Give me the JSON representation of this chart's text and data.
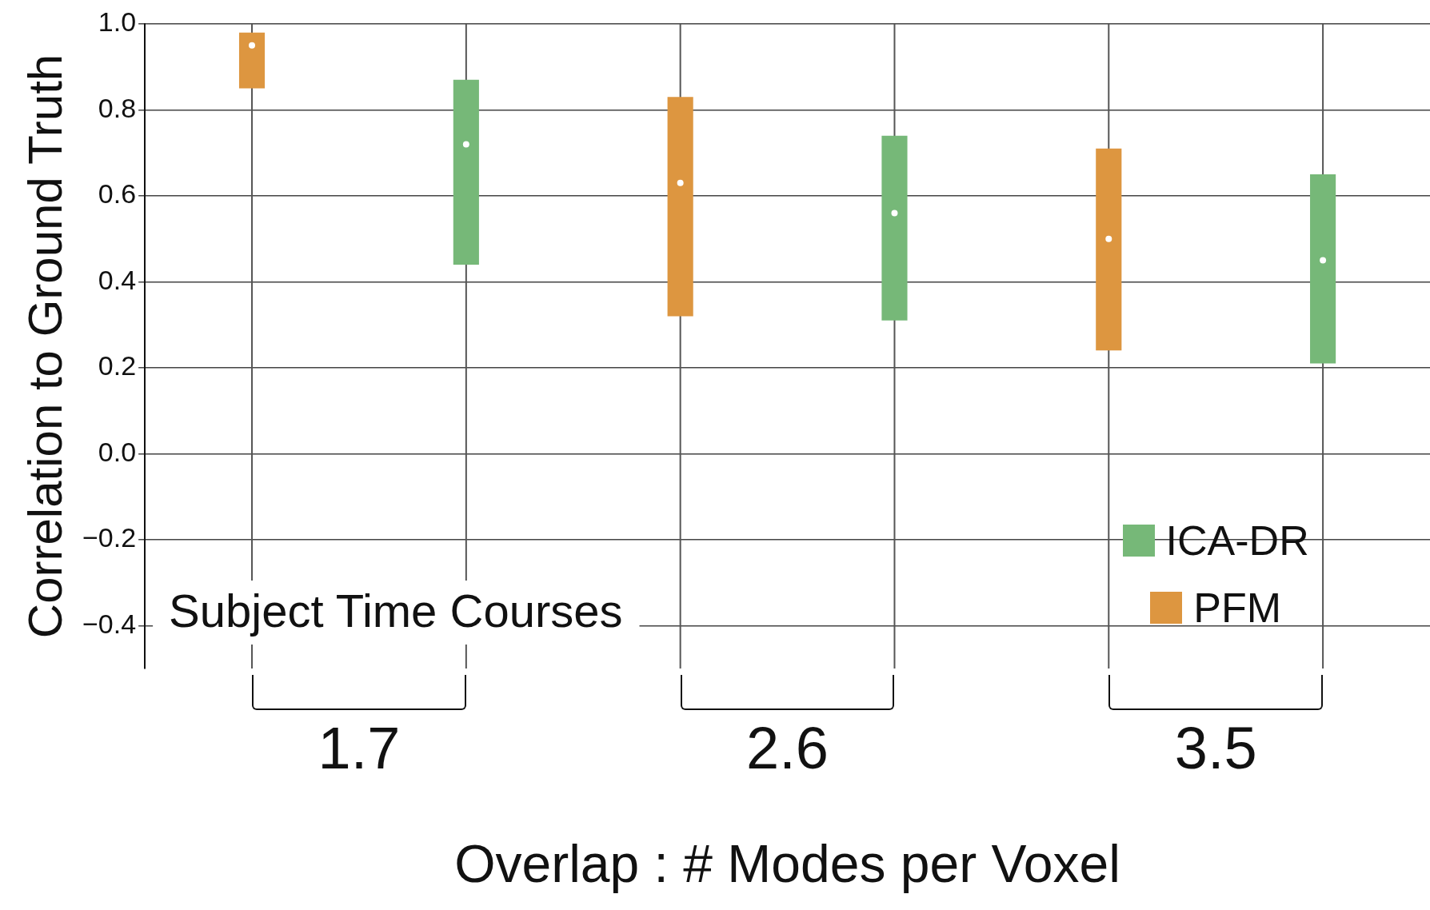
{
  "chart_data": {
    "type": "box",
    "xlabel": "Overlap : # Modes per Voxel",
    "ylabel": "Correlation to Ground Truth",
    "categories": [
      "1.7",
      "2.6",
      "3.5"
    ],
    "series": [
      {
        "name": "PFM",
        "color": "#dd9640",
        "boxes": [
          {
            "low": -0.5,
            "q1": 0.85,
            "median": 0.95,
            "q3": 0.98,
            "high": 1.0
          },
          {
            "low": -0.5,
            "q1": 0.32,
            "median": 0.63,
            "q3": 0.83,
            "high": 1.0
          },
          {
            "low": -0.5,
            "q1": 0.24,
            "median": 0.5,
            "q3": 0.71,
            "high": 1.0
          }
        ]
      },
      {
        "name": "ICA-DR",
        "color": "#76b878",
        "boxes": [
          {
            "low": -0.5,
            "q1": 0.44,
            "median": 0.72,
            "q3": 0.87,
            "high": 1.0
          },
          {
            "low": -0.5,
            "q1": 0.31,
            "median": 0.56,
            "q3": 0.74,
            "high": 1.0
          },
          {
            "low": -0.5,
            "q1": 0.21,
            "median": 0.45,
            "q3": 0.65,
            "high": 1.0
          }
        ]
      }
    ],
    "ylim": [
      -0.5,
      1.0
    ],
    "yticks": [
      {
        "value": 1.0,
        "label": "1.0"
      },
      0.8,
      0.6,
      0.4,
      0.2,
      {
        "value": 0.0,
        "label": "0.0"
      },
      {
        "value": -0.2,
        "label": "−0.2"
      },
      {
        "value": -0.4,
        "label": "−0.4"
      }
    ],
    "grid": "y",
    "legend": "bottom right",
    "annotations": [
      "Subject Time Courses"
    ]
  }
}
